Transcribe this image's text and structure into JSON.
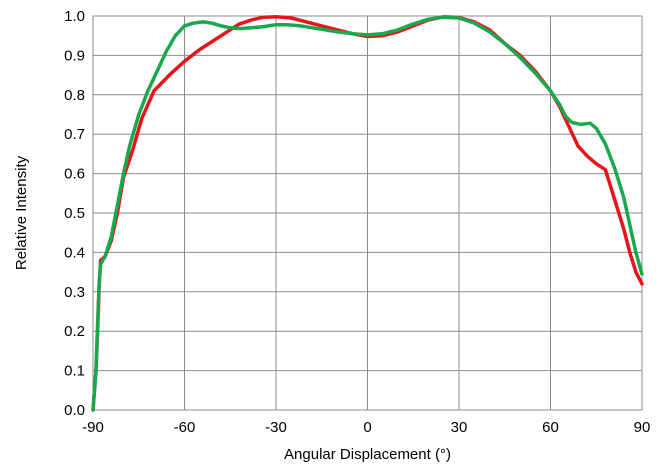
{
  "chart_data": {
    "type": "line",
    "title": "",
    "xlabel": "Angular Displacement (°)",
    "ylabel": "Relative Intensity",
    "xlim": [
      -90,
      90
    ],
    "ylim": [
      0.0,
      1.0
    ],
    "x_ticks": [
      "-90",
      "-60",
      "-30",
      "0",
      "30",
      "60",
      "90"
    ],
    "y_ticks": [
      "0.0",
      "0.1",
      "0.2",
      "0.3",
      "0.4",
      "0.5",
      "0.6",
      "0.7",
      "0.8",
      "0.9",
      "1.0"
    ],
    "grid": true,
    "legend": "none",
    "series": [
      {
        "color": "#e8141b",
        "points": [
          [
            -90,
            0.0
          ],
          [
            -89,
            0.1
          ],
          [
            -88.5,
            0.2
          ],
          [
            -88,
            0.31
          ],
          [
            -87.5,
            0.38
          ],
          [
            -86,
            0.39
          ],
          [
            -84,
            0.43
          ],
          [
            -82,
            0.5
          ],
          [
            -80,
            0.59
          ],
          [
            -77,
            0.66
          ],
          [
            -74,
            0.74
          ],
          [
            -70,
            0.81
          ],
          [
            -65,
            0.85
          ],
          [
            -60,
            0.885
          ],
          [
            -55,
            0.915
          ],
          [
            -52,
            0.93
          ],
          [
            -48,
            0.95
          ],
          [
            -45,
            0.965
          ],
          [
            -42,
            0.98
          ],
          [
            -38,
            0.99
          ],
          [
            -34,
            0.997
          ],
          [
            -30,
            0.998
          ],
          [
            -25,
            0.995
          ],
          [
            -20,
            0.985
          ],
          [
            -15,
            0.975
          ],
          [
            -10,
            0.965
          ],
          [
            -5,
            0.955
          ],
          [
            0,
            0.948
          ],
          [
            5,
            0.95
          ],
          [
            10,
            0.96
          ],
          [
            15,
            0.975
          ],
          [
            20,
            0.99
          ],
          [
            25,
            0.998
          ],
          [
            30,
            0.996
          ],
          [
            35,
            0.985
          ],
          [
            40,
            0.965
          ],
          [
            45,
            0.93
          ],
          [
            50,
            0.9
          ],
          [
            55,
            0.86
          ],
          [
            60,
            0.81
          ],
          [
            63,
            0.77
          ],
          [
            66,
            0.72
          ],
          [
            69,
            0.67
          ],
          [
            72,
            0.645
          ],
          [
            75,
            0.625
          ],
          [
            78,
            0.61
          ],
          [
            80,
            0.56
          ],
          [
            82,
            0.51
          ],
          [
            84,
            0.46
          ],
          [
            86,
            0.4
          ],
          [
            88,
            0.35
          ],
          [
            90,
            0.32
          ]
        ]
      },
      {
        "color": "#1aa84f",
        "points": [
          [
            -90,
            0.0
          ],
          [
            -89,
            0.1
          ],
          [
            -88.5,
            0.22
          ],
          [
            -88,
            0.32
          ],
          [
            -87.5,
            0.37
          ],
          [
            -86,
            0.39
          ],
          [
            -84,
            0.44
          ],
          [
            -82,
            0.52
          ],
          [
            -80,
            0.6
          ],
          [
            -78,
            0.67
          ],
          [
            -75,
            0.75
          ],
          [
            -72,
            0.81
          ],
          [
            -69,
            0.86
          ],
          [
            -66,
            0.91
          ],
          [
            -63,
            0.95
          ],
          [
            -60,
            0.975
          ],
          [
            -57,
            0.982
          ],
          [
            -54,
            0.985
          ],
          [
            -51,
            0.982
          ],
          [
            -48,
            0.975
          ],
          [
            -45,
            0.97
          ],
          [
            -42,
            0.968
          ],
          [
            -38,
            0.97
          ],
          [
            -34,
            0.973
          ],
          [
            -30,
            0.978
          ],
          [
            -26,
            0.978
          ],
          [
            -22,
            0.975
          ],
          [
            -18,
            0.97
          ],
          [
            -14,
            0.965
          ],
          [
            -10,
            0.96
          ],
          [
            -5,
            0.955
          ],
          [
            0,
            0.952
          ],
          [
            5,
            0.955
          ],
          [
            10,
            0.965
          ],
          [
            15,
            0.98
          ],
          [
            20,
            0.992
          ],
          [
            25,
            0.997
          ],
          [
            30,
            0.995
          ],
          [
            35,
            0.982
          ],
          [
            40,
            0.96
          ],
          [
            45,
            0.93
          ],
          [
            50,
            0.895
          ],
          [
            55,
            0.855
          ],
          [
            60,
            0.81
          ],
          [
            63,
            0.775
          ],
          [
            65,
            0.745
          ],
          [
            67,
            0.73
          ],
          [
            70,
            0.725
          ],
          [
            73,
            0.728
          ],
          [
            75,
            0.715
          ],
          [
            78,
            0.675
          ],
          [
            81,
            0.615
          ],
          [
            84,
            0.54
          ],
          [
            86,
            0.47
          ],
          [
            88,
            0.4
          ],
          [
            90,
            0.345
          ]
        ]
      }
    ]
  }
}
